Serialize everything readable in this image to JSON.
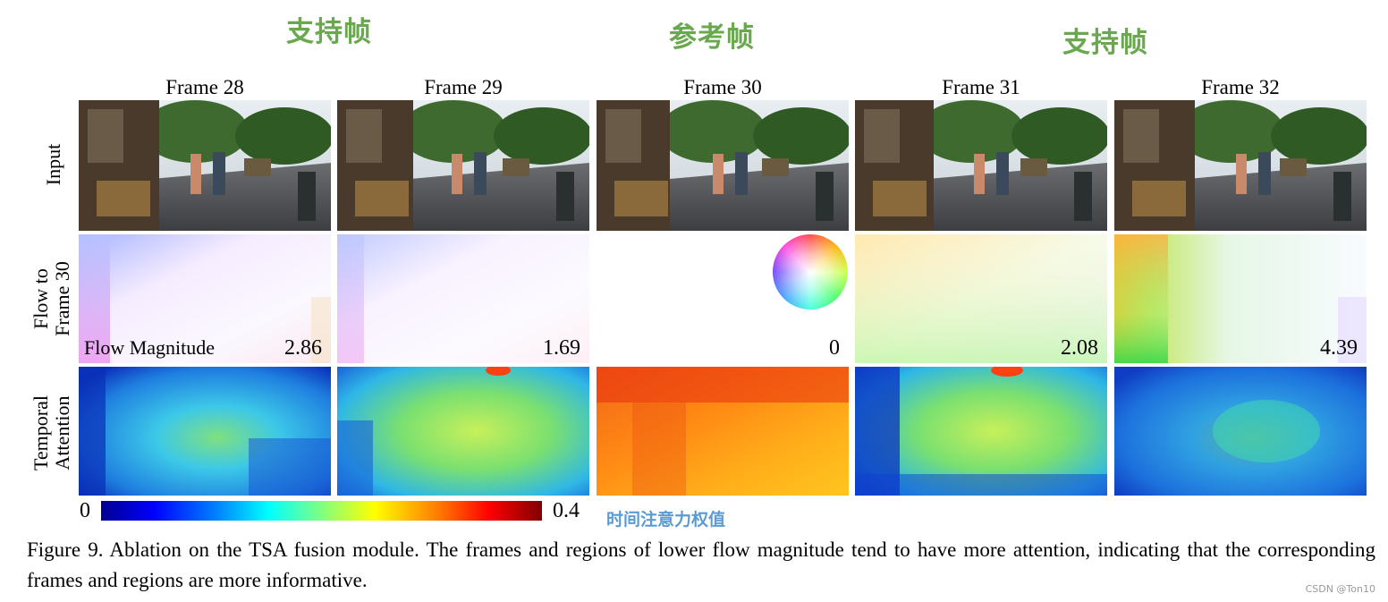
{
  "header_labels": {
    "left": "支持帧",
    "center": "参考帧",
    "right": "支持帧"
  },
  "frames": [
    {
      "title": "Frame 28",
      "flow_magnitude": "2.86"
    },
    {
      "title": "Frame 29",
      "flow_magnitude": "1.69"
    },
    {
      "title": "Frame 30",
      "flow_magnitude": "0"
    },
    {
      "title": "Frame 31",
      "flow_magnitude": "2.08"
    },
    {
      "title": "Frame 32",
      "flow_magnitude": "4.39"
    }
  ],
  "row_labels": {
    "input": "Input",
    "flow_line1": "Flow to",
    "flow_line2": "Frame 30",
    "attention_line1": "Temporal",
    "attention_line2": "Attention"
  },
  "flow_magnitude_label": "Flow Magnitude",
  "colorbar": {
    "min": "0",
    "max": "0.4",
    "annotation": "时间注意力权值"
  },
  "caption": "Figure 9.  Ablation on the TSA fusion module.  The frames and regions of lower flow magnitude tend to have more attention, indicating that the corresponding frames and regions are more informative.",
  "watermark": "CSDN @Ton10",
  "colors": {
    "cn_label": "#6aa84f",
    "attn_label": "#5b9bd5"
  }
}
